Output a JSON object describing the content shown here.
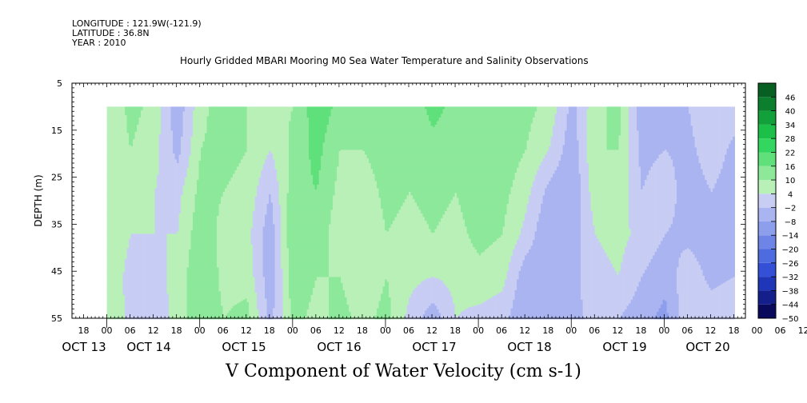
{
  "header": {
    "longitude": "LONGITUDE : 121.9W(-121.9)",
    "latitude": "LATITUDE : 36.8N",
    "year": "YEAR : 2010",
    "title": "Hourly Gridded MBARI Mooring M0 Sea Water Temperature and Salinity Observations"
  },
  "bottom_label": "V Component of Water Velocity (cm s-1)",
  "chart_data": {
    "type": "heatmap",
    "title": "Hourly Gridded MBARI Mooring M0 Sea Water Temperature and Salinity Observations",
    "variable": "V Component of Water Velocity (cm s-1)",
    "ylabel": "DEPTH (m)",
    "ylim": [
      5,
      55
    ],
    "y_inverted": true,
    "y_ticks": [
      5,
      15,
      25,
      35,
      45,
      55
    ],
    "xlim": [
      "2010-10-13T15:00",
      "2010-10-20T21:00"
    ],
    "x_hour_ticks": [
      "18",
      "00",
      "06",
      "12",
      "18",
      "00",
      "06",
      "12",
      "18",
      "00",
      "06",
      "12",
      "18",
      "00",
      "06",
      "12",
      "18",
      "00",
      "06",
      "12",
      "18",
      "00",
      "06",
      "12",
      "18",
      "00",
      "06",
      "12",
      "18",
      "00",
      "06",
      "12"
    ],
    "x_day_labels": [
      "OCT 13",
      "OCT 14",
      "OCT 15",
      "OCT 16",
      "OCT 17",
      "OCT 18",
      "OCT 19",
      "OCT 20"
    ],
    "data_start": "2010-10-14T00:00",
    "data_depth_top": 10,
    "colorbar": {
      "levels": [
        -50,
        -44,
        -38,
        -32,
        -26,
        -20,
        -14,
        -8,
        -2,
        4,
        10,
        16,
        22,
        28,
        34,
        40,
        46
      ],
      "colors": [
        "#0a0a5c",
        "#141f8c",
        "#1f36b8",
        "#3350d6",
        "#4f6be0",
        "#6e84e6",
        "#8d9eec",
        "#aab4f0",
        "#c8cdf4",
        "#b8f0b8",
        "#8de89a",
        "#5fe07a",
        "#33d65f",
        "#1cbf48",
        "#12a03a",
        "#0c7f2e",
        "#075f22"
      ]
    },
    "columns": [
      {
        "t": "14 00",
        "v": [
          4,
          6,
          7,
          8,
          8,
          9
        ]
      },
      {
        "t": "14 06",
        "v": [
          12,
          10,
          6,
          4,
          2,
          2
        ]
      },
      {
        "t": "14 12",
        "v": [
          8,
          6,
          4,
          4,
          2,
          0
        ]
      },
      {
        "t": "14 18",
        "v": [
          -6,
          -4,
          2,
          4,
          6,
          6
        ]
      },
      {
        "t": "15 00",
        "v": [
          8,
          10,
          12,
          14,
          16,
          16
        ]
      },
      {
        "t": "15 06",
        "v": [
          14,
          12,
          10,
          8,
          8,
          10
        ]
      },
      {
        "t": "15 12",
        "v": [
          10,
          10,
          8,
          6,
          8,
          12
        ]
      },
      {
        "t": "15 18",
        "v": [
          8,
          4,
          -2,
          -6,
          -6,
          -4
        ]
      },
      {
        "t": "16 00",
        "v": [
          10,
          12,
          14,
          16,
          14,
          12
        ]
      },
      {
        "t": "16 06",
        "v": [
          20,
          18,
          16,
          14,
          10,
          8
        ]
      },
      {
        "t": "16 12",
        "v": [
          14,
          10,
          8,
          6,
          10,
          12
        ]
      },
      {
        "t": "16 18",
        "v": [
          12,
          10,
          6,
          4,
          6,
          8
        ]
      },
      {
        "t": "17 00",
        "v": [
          16,
          14,
          12,
          10,
          10,
          12
        ]
      },
      {
        "t": "17 06",
        "v": [
          12,
          10,
          10,
          8,
          6,
          2
        ]
      },
      {
        "t": "17 12",
        "v": [
          18,
          14,
          12,
          10,
          4,
          -6
        ]
      },
      {
        "t": "17 18",
        "v": [
          14,
          12,
          10,
          8,
          6,
          4
        ]
      },
      {
        "t": "18 00",
        "v": [
          10,
          12,
          14,
          12,
          8,
          2
        ]
      },
      {
        "t": "18 06",
        "v": [
          16,
          14,
          12,
          10,
          6,
          0
        ]
      },
      {
        "t": "18 12",
        "v": [
          12,
          10,
          6,
          2,
          -6,
          -8
        ]
      },
      {
        "t": "18 18",
        "v": [
          8,
          4,
          -4,
          -8,
          -6,
          -6
        ]
      },
      {
        "t": "19 00",
        "v": [
          -4,
          -6,
          -8,
          -6,
          -4,
          -4
        ]
      },
      {
        "t": "19 06",
        "v": [
          8,
          10,
          8,
          4,
          2,
          0
        ]
      },
      {
        "t": "19 12",
        "v": [
          12,
          10,
          8,
          6,
          4,
          -2
        ]
      },
      {
        "t": "19 18",
        "v": [
          -6,
          -4,
          -2,
          2,
          -2,
          -6
        ]
      },
      {
        "t": "20 00",
        "v": [
          -4,
          -2,
          2,
          -2,
          -6,
          -10
        ]
      },
      {
        "t": "20 06",
        "v": [
          -2,
          -4,
          -6,
          -4,
          2,
          4
        ]
      },
      {
        "t": "20 12",
        "v": [
          4,
          2,
          -2,
          -6,
          -4,
          2
        ]
      },
      {
        "t": "20 18",
        "v": [
          2,
          -4,
          -6,
          -6,
          -2,
          4
        ]
      }
    ]
  }
}
